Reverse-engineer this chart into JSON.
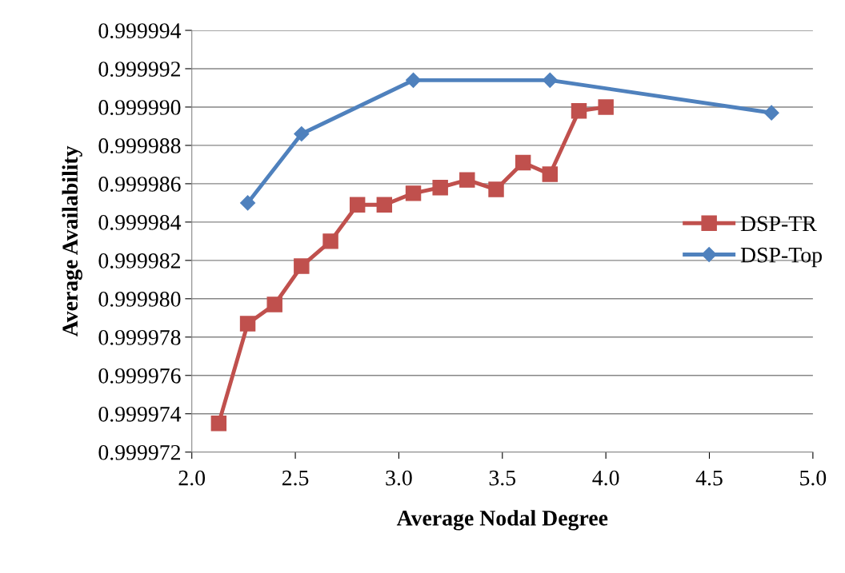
{
  "chart_data": {
    "type": "line",
    "xlabel": "Average Nodal Degree",
    "ylabel": "Average Availability",
    "xlim": [
      2.0,
      5.0
    ],
    "xticks": [
      {
        "value": 2.0,
        "label": "2.0"
      },
      {
        "value": 2.5,
        "label": "2.5"
      },
      {
        "value": 3.0,
        "label": "3.0"
      },
      {
        "value": 3.5,
        "label": "3.5"
      },
      {
        "value": 4.0,
        "label": "4.0"
      },
      {
        "value": 4.5,
        "label": "4.5"
      },
      {
        "value": 5.0,
        "label": "5.0"
      }
    ],
    "ylim": [
      0.999972,
      0.999994
    ],
    "yticks": [
      {
        "value": 0.999972,
        "label": "0.999972"
      },
      {
        "value": 0.999974,
        "label": "0.999974"
      },
      {
        "value": 0.999976,
        "label": "0.999976"
      },
      {
        "value": 0.999978,
        "label": "0.999978"
      },
      {
        "value": 0.99998,
        "label": "0.999980"
      },
      {
        "value": 0.999982,
        "label": "0.999982"
      },
      {
        "value": 0.999984,
        "label": "0.999984"
      },
      {
        "value": 0.999986,
        "label": "0.999986"
      },
      {
        "value": 0.999988,
        "label": "0.999988"
      },
      {
        "value": 0.99999,
        "label": "0.999990"
      },
      {
        "value": 0.999992,
        "label": "0.999992"
      },
      {
        "value": 0.999994,
        "label": "0.999994"
      }
    ],
    "grid": "y",
    "legend": "right",
    "series": [
      {
        "name": "DSP-TR",
        "color": "#c0504d",
        "marker": "square",
        "x": [
          2.13,
          2.27,
          2.4,
          2.53,
          2.67,
          2.8,
          2.93,
          3.07,
          3.2,
          3.33,
          3.47,
          3.6,
          3.73,
          3.87,
          4.0
        ],
        "values": [
          0.9999735,
          0.9999787,
          0.9999797,
          0.9999817,
          0.999983,
          0.9999849,
          0.9999849,
          0.9999855,
          0.9999858,
          0.9999862,
          0.9999857,
          0.9999871,
          0.9999865,
          0.9999898,
          0.99999
        ]
      },
      {
        "name": "DSP-Top",
        "color": "#4f81bd",
        "marker": "diamond",
        "x": [
          2.27,
          2.53,
          3.07,
          3.73,
          4.8
        ],
        "values": [
          0.999985,
          0.9999886,
          0.9999914,
          0.9999914,
          0.9999897
        ]
      }
    ]
  }
}
